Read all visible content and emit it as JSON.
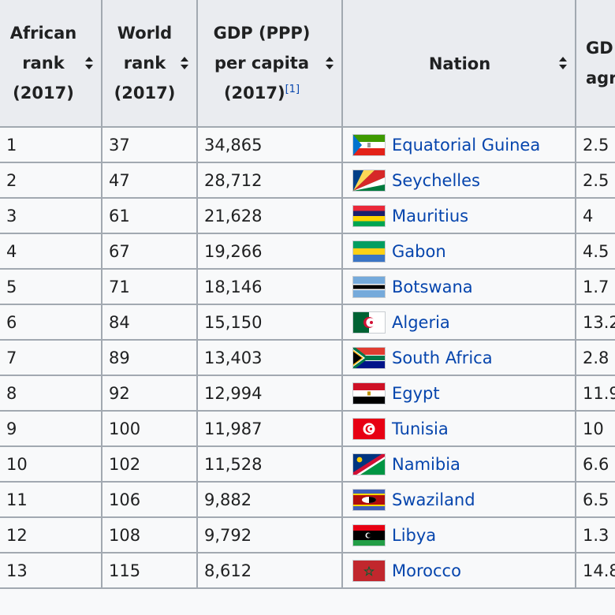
{
  "table": {
    "headers": [
      {
        "lines": [
          "African",
          "rank",
          "(2017)"
        ]
      },
      {
        "lines": [
          "World",
          "rank",
          "(2017)"
        ]
      },
      {
        "lines": [
          "GDP (PPP)",
          "per capita",
          "(2017)"
        ],
        "ref": "[1]"
      },
      {
        "lines": [
          "Nation"
        ]
      },
      {
        "lines": [
          "GD",
          "agr"
        ]
      }
    ],
    "rows": [
      {
        "african_rank": "1",
        "world_rank": "37",
        "gdp": "34,865",
        "nation": "Equatorial Guinea",
        "flag": "equatorial-guinea-flag-icon",
        "growth": "2.5"
      },
      {
        "african_rank": "2",
        "world_rank": "47",
        "gdp": "28,712",
        "nation": "Seychelles",
        "flag": "seychelles-flag-icon",
        "growth": "2.5"
      },
      {
        "african_rank": "3",
        "world_rank": "61",
        "gdp": "21,628",
        "nation": "Mauritius",
        "flag": "mauritius-flag-icon",
        "growth": "4"
      },
      {
        "african_rank": "4",
        "world_rank": "67",
        "gdp": "19,266",
        "nation": "Gabon",
        "flag": "gabon-flag-icon",
        "growth": "4.5"
      },
      {
        "african_rank": "5",
        "world_rank": "71",
        "gdp": "18,146",
        "nation": "Botswana",
        "flag": "botswana-flag-icon",
        "growth": "1.7"
      },
      {
        "african_rank": "6",
        "world_rank": "84",
        "gdp": "15,150",
        "nation": "Algeria",
        "flag": "algeria-flag-icon",
        "growth": "13.2"
      },
      {
        "african_rank": "7",
        "world_rank": "89",
        "gdp": "13,403",
        "nation": "South Africa",
        "flag": "south-africa-flag-icon",
        "growth": "2.8"
      },
      {
        "african_rank": "8",
        "world_rank": "92",
        "gdp": "12,994",
        "nation": "Egypt",
        "flag": "egypt-flag-icon",
        "growth": "11.9"
      },
      {
        "african_rank": "9",
        "world_rank": "100",
        "gdp": "11,987",
        "nation": "Tunisia",
        "flag": "tunisia-flag-icon",
        "growth": "10"
      },
      {
        "african_rank": "10",
        "world_rank": "102",
        "gdp": "11,528",
        "nation": "Namibia",
        "flag": "namibia-flag-icon",
        "growth": "6.6"
      },
      {
        "african_rank": "11",
        "world_rank": "106",
        "gdp": "9,882",
        "nation": "Swaziland",
        "flag": "swaziland-flag-icon",
        "growth": "6.5"
      },
      {
        "african_rank": "12",
        "world_rank": "108",
        "gdp": "9,792",
        "nation": "Libya",
        "flag": "libya-flag-icon",
        "growth": "1.3"
      },
      {
        "african_rank": "13",
        "world_rank": "115",
        "gdp": "8,612",
        "nation": "Morocco",
        "flag": "morocco-flag-icon",
        "growth": "14.8"
      }
    ]
  }
}
